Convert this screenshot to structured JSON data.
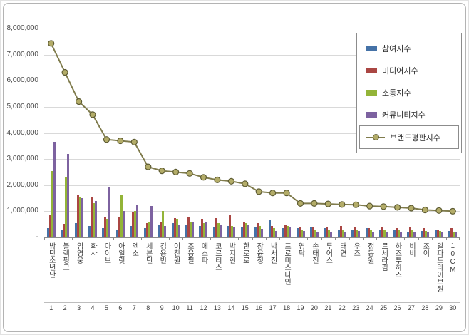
{
  "colors": {
    "blue": "#4572a7",
    "red": "#aa4643",
    "green": "#93b438",
    "purple": "#7d62a0",
    "line": "#7f7b4c",
    "marker_fill": "#b3ac68",
    "marker_stroke": "#5e5c33",
    "gridline": "#d9d9d9",
    "axis": "#8c8c8c"
  },
  "legend": {
    "items": [
      {
        "label": "참여지수",
        "type": "bar",
        "color": "#4572a7",
        "boxed": false
      },
      {
        "label": "미디어지수",
        "type": "bar",
        "color": "#aa4643",
        "boxed": false
      },
      {
        "label": "소통지수",
        "type": "bar",
        "color": "#93b438",
        "boxed": false
      },
      {
        "label": "커뮤니티지수",
        "type": "bar",
        "color": "#7d62a0",
        "boxed": false
      },
      {
        "label": "브랜드평판지수",
        "type": "line",
        "color": "#7f7b4c",
        "marker": "#b3ac68",
        "boxed": true
      }
    ]
  },
  "chart_data": {
    "type": "bar",
    "note": "grouped bars with line overlay (브랜드평판지수)",
    "title": "",
    "xlabel": "",
    "ylabel": "",
    "ylim": [
      0,
      8000000
    ],
    "ytick_interval": 1000000,
    "ytick_labels": [
      "8,000,000",
      "7,000,000",
      "6,000,000",
      "5,000,000",
      "4,000,000",
      "3,000,000",
      "2,000,000",
      "1,000,000",
      "-"
    ],
    "grid": true,
    "legend_position": "top-right",
    "categories": [
      "방탄소년단",
      "블랙핑크",
      "임영웅",
      "화사",
      "아이브",
      "아일릿",
      "엑소",
      "세븐틴",
      "김용빈",
      "이찬원",
      "조용필",
      "에스파",
      "코르티스",
      "박지현",
      "한로로",
      "장윤정",
      "박서진",
      "프로미스나인",
      "영탁",
      "손태진",
      "투어스",
      "태연",
      "우즈",
      "정동원",
      "르세라핌",
      "하즈투하즈",
      "비비",
      "조이",
      "알파드라이브원",
      "10CM"
    ],
    "category_numbers": [
      "1",
      "2",
      "3",
      "4",
      "5",
      "6",
      "7",
      "8",
      "9",
      "10",
      "11",
      "12",
      "13",
      "14",
      "15",
      "16",
      "17",
      "18",
      "19",
      "20",
      "21",
      "22",
      "23",
      "24",
      "25",
      "26",
      "27",
      "28",
      "29",
      "30"
    ],
    "series": [
      {
        "name": "참여지수",
        "type": "bar",
        "color": "#4572a7",
        "values": [
          350000,
          300000,
          560000,
          450000,
          350000,
          300000,
          430000,
          350000,
          500000,
          550000,
          480000,
          450000,
          400000,
          450000,
          400000,
          420000,
          650000,
          350000,
          350000,
          400000,
          350000,
          300000,
          300000,
          350000,
          300000,
          280000,
          230000,
          250000,
          300000,
          250000
        ]
      },
      {
        "name": "미디어지수",
        "type": "bar",
        "color": "#aa4643",
        "values": [
          880000,
          520000,
          1620000,
          1550000,
          760000,
          800000,
          950000,
          550000,
          600000,
          750000,
          800000,
          700000,
          750000,
          850000,
          600000,
          550000,
          450000,
          500000,
          400000,
          400000,
          400000,
          450000,
          400000,
          350000,
          380000,
          350000,
          400000,
          350000,
          300000,
          350000
        ]
      },
      {
        "name": "소통지수",
        "type": "bar",
        "color": "#93b438",
        "values": [
          2550000,
          2300000,
          1520000,
          1300000,
          700000,
          1600000,
          1000000,
          600000,
          1000000,
          700000,
          600000,
          550000,
          550000,
          450000,
          550000,
          450000,
          350000,
          450000,
          300000,
          300000,
          300000,
          280000,
          300000,
          280000,
          280000,
          300000,
          290000,
          250000,
          250000,
          220000
        ]
      },
      {
        "name": "커뮤니티지수",
        "type": "bar",
        "color": "#7d62a0",
        "values": [
          3650000,
          3200000,
          1500000,
          1400000,
          1940000,
          1000000,
          1270000,
          1200000,
          450000,
          500000,
          570000,
          600000,
          500000,
          400000,
          500000,
          330000,
          250000,
          400000,
          250000,
          200000,
          230000,
          230000,
          250000,
          220000,
          220000,
          220000,
          200000,
          200000,
          180000,
          180000
        ]
      },
      {
        "name": "브랜드평판지수",
        "type": "line",
        "color": "#7f7b4c",
        "marker_fill": "#b3ac68",
        "marker_stroke": "#5e5c33",
        "values": [
          7430000,
          6320000,
          5200000,
          4700000,
          3750000,
          3700000,
          3650000,
          2700000,
          2550000,
          2500000,
          2450000,
          2300000,
          2200000,
          2150000,
          2050000,
          1750000,
          1700000,
          1700000,
          1300000,
          1300000,
          1280000,
          1260000,
          1250000,
          1200000,
          1180000,
          1150000,
          1120000,
          1050000,
          1030000,
          1000000
        ]
      }
    ]
  }
}
